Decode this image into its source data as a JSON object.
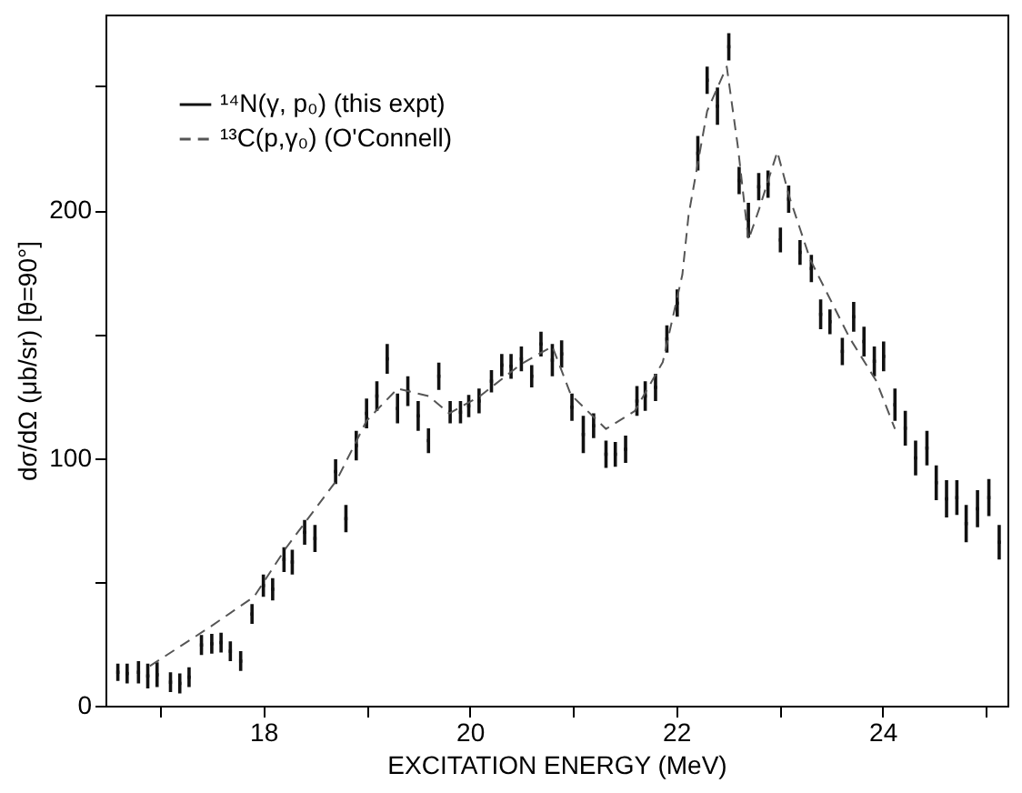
{
  "chart_data": {
    "type": "scatter",
    "xlabel": "EXCITATION ENERGY (MeV)",
    "ylabel": "dσ/dΩ (μb/sr) [θ=90°]",
    "xlim": [
      16.47,
      25.21
    ],
    "ylim": [
      0,
      279
    ],
    "xticks": [
      {
        "value": 17,
        "label": null
      },
      18,
      {
        "value": 19,
        "label": null
      },
      20,
      {
        "value": 21,
        "label": null
      },
      22,
      {
        "value": 23,
        "label": null
      },
      24,
      {
        "value": 25,
        "label": null
      }
    ],
    "yticks": [
      0,
      {
        "value": 50,
        "label": null
      },
      100,
      {
        "value": 150,
        "label": null
      },
      200,
      {
        "value": 250,
        "label": null
      }
    ],
    "grid": false,
    "legend": "top left",
    "series": [
      {
        "name": "¹⁴N(γ, p₀) (this expt)",
        "type": "scatter",
        "marker": "square",
        "color": "#111111",
        "x": [
          16.59,
          16.68,
          16.79,
          16.88,
          16.97,
          17.1,
          17.19,
          17.28,
          17.4,
          17.5,
          17.59,
          17.68,
          17.78,
          17.89,
          18.0,
          18.09,
          18.2,
          18.28,
          18.4,
          18.5,
          18.7,
          18.8,
          18.9,
          19.0,
          19.1,
          19.2,
          19.3,
          19.4,
          19.5,
          19.6,
          19.7,
          19.81,
          19.91,
          19.99,
          20.09,
          20.21,
          20.31,
          20.4,
          20.5,
          20.6,
          20.69,
          20.8,
          20.89,
          20.99,
          21.1,
          21.2,
          21.32,
          21.41,
          21.51,
          21.62,
          21.7,
          21.8,
          21.91,
          22.01,
          22.21,
          22.3,
          22.4,
          22.51,
          22.61,
          22.7,
          22.8,
          22.89,
          23.01,
          23.09,
          23.2,
          23.31,
          23.4,
          23.49,
          23.61,
          23.72,
          23.82,
          23.92,
          24.01,
          24.12,
          24.22,
          24.32,
          24.43,
          24.52,
          24.62,
          24.72,
          24.81,
          24.92,
          25.03,
          25.13
        ],
        "values": [
          13.5,
          13,
          13.5,
          12,
          12.5,
          9.5,
          9,
          11.5,
          24.5,
          25,
          25.5,
          22,
          18,
          37,
          48.5,
          47,
          59,
          58,
          70,
          67.5,
          94.5,
          75.5,
          105,
          118,
          125,
          140,
          120,
          127,
          117,
          107,
          133,
          118.5,
          118.5,
          121,
          123,
          131,
          137.5,
          137,
          140,
          133,
          146,
          139.5,
          142,
          120.5,
          109.5,
          113,
          101.5,
          101.5,
          103.5,
          123,
          125,
          128.5,
          148,
          162.5,
          223,
          252.5,
          242,
          266,
          212,
          196,
          209.5,
          210.5,
          188,
          204.5,
          183,
          176.5,
          158,
          155,
          143,
          157,
          147,
          139,
          141,
          121.5,
          112,
          100,
          104,
          90,
          83.5,
          84,
          73.5,
          79.5,
          84,
          66
        ],
        "errors": [
          3.5,
          4,
          4.5,
          5,
          5,
          4,
          4,
          4,
          4,
          4,
          4,
          4,
          4,
          4,
          4.5,
          4.5,
          5,
          5,
          5,
          5.5,
          5,
          5.5,
          6,
          6,
          6,
          6,
          6,
          6,
          6,
          5,
          5.5,
          4.5,
          4.5,
          4.5,
          5,
          4.5,
          4.5,
          5,
          5,
          4.5,
          5,
          6.5,
          5.5,
          5.5,
          7.5,
          5,
          5.5,
          5,
          5.5,
          6,
          6,
          5.5,
          5.5,
          5.5,
          7,
          5.5,
          7.5,
          5.5,
          5.5,
          7,
          5.5,
          5.5,
          5,
          5.5,
          5,
          5.5,
          6,
          5,
          5.5,
          6,
          6,
          6,
          6,
          6.5,
          7,
          7,
          7,
          7,
          7.5,
          7,
          7.5,
          7.5,
          7.5,
          7
        ]
      },
      {
        "name": "¹³C(p,γ₀) (O'Connell)",
        "type": "line",
        "line_style": "dashed",
        "color": "#555555",
        "x": [
          16.9,
          17.48,
          17.91,
          18.22,
          18.71,
          19.0,
          19.3,
          19.6,
          19.8,
          20.1,
          20.5,
          20.8,
          20.98,
          21.32,
          21.6,
          21.87,
          22.06,
          22.12,
          22.3,
          22.49,
          22.6,
          22.7,
          22.8,
          22.98,
          23.1,
          23.3,
          23.68,
          23.94,
          24.12
        ],
        "values": [
          16,
          31.7,
          44,
          63.7,
          91,
          115,
          128,
          125,
          118,
          125,
          138,
          145,
          125.5,
          111.7,
          119,
          138.7,
          174,
          198,
          240,
          258,
          225,
          188,
          200,
          223.6,
          205,
          180,
          148.5,
          131,
          111.7
        ]
      }
    ]
  }
}
